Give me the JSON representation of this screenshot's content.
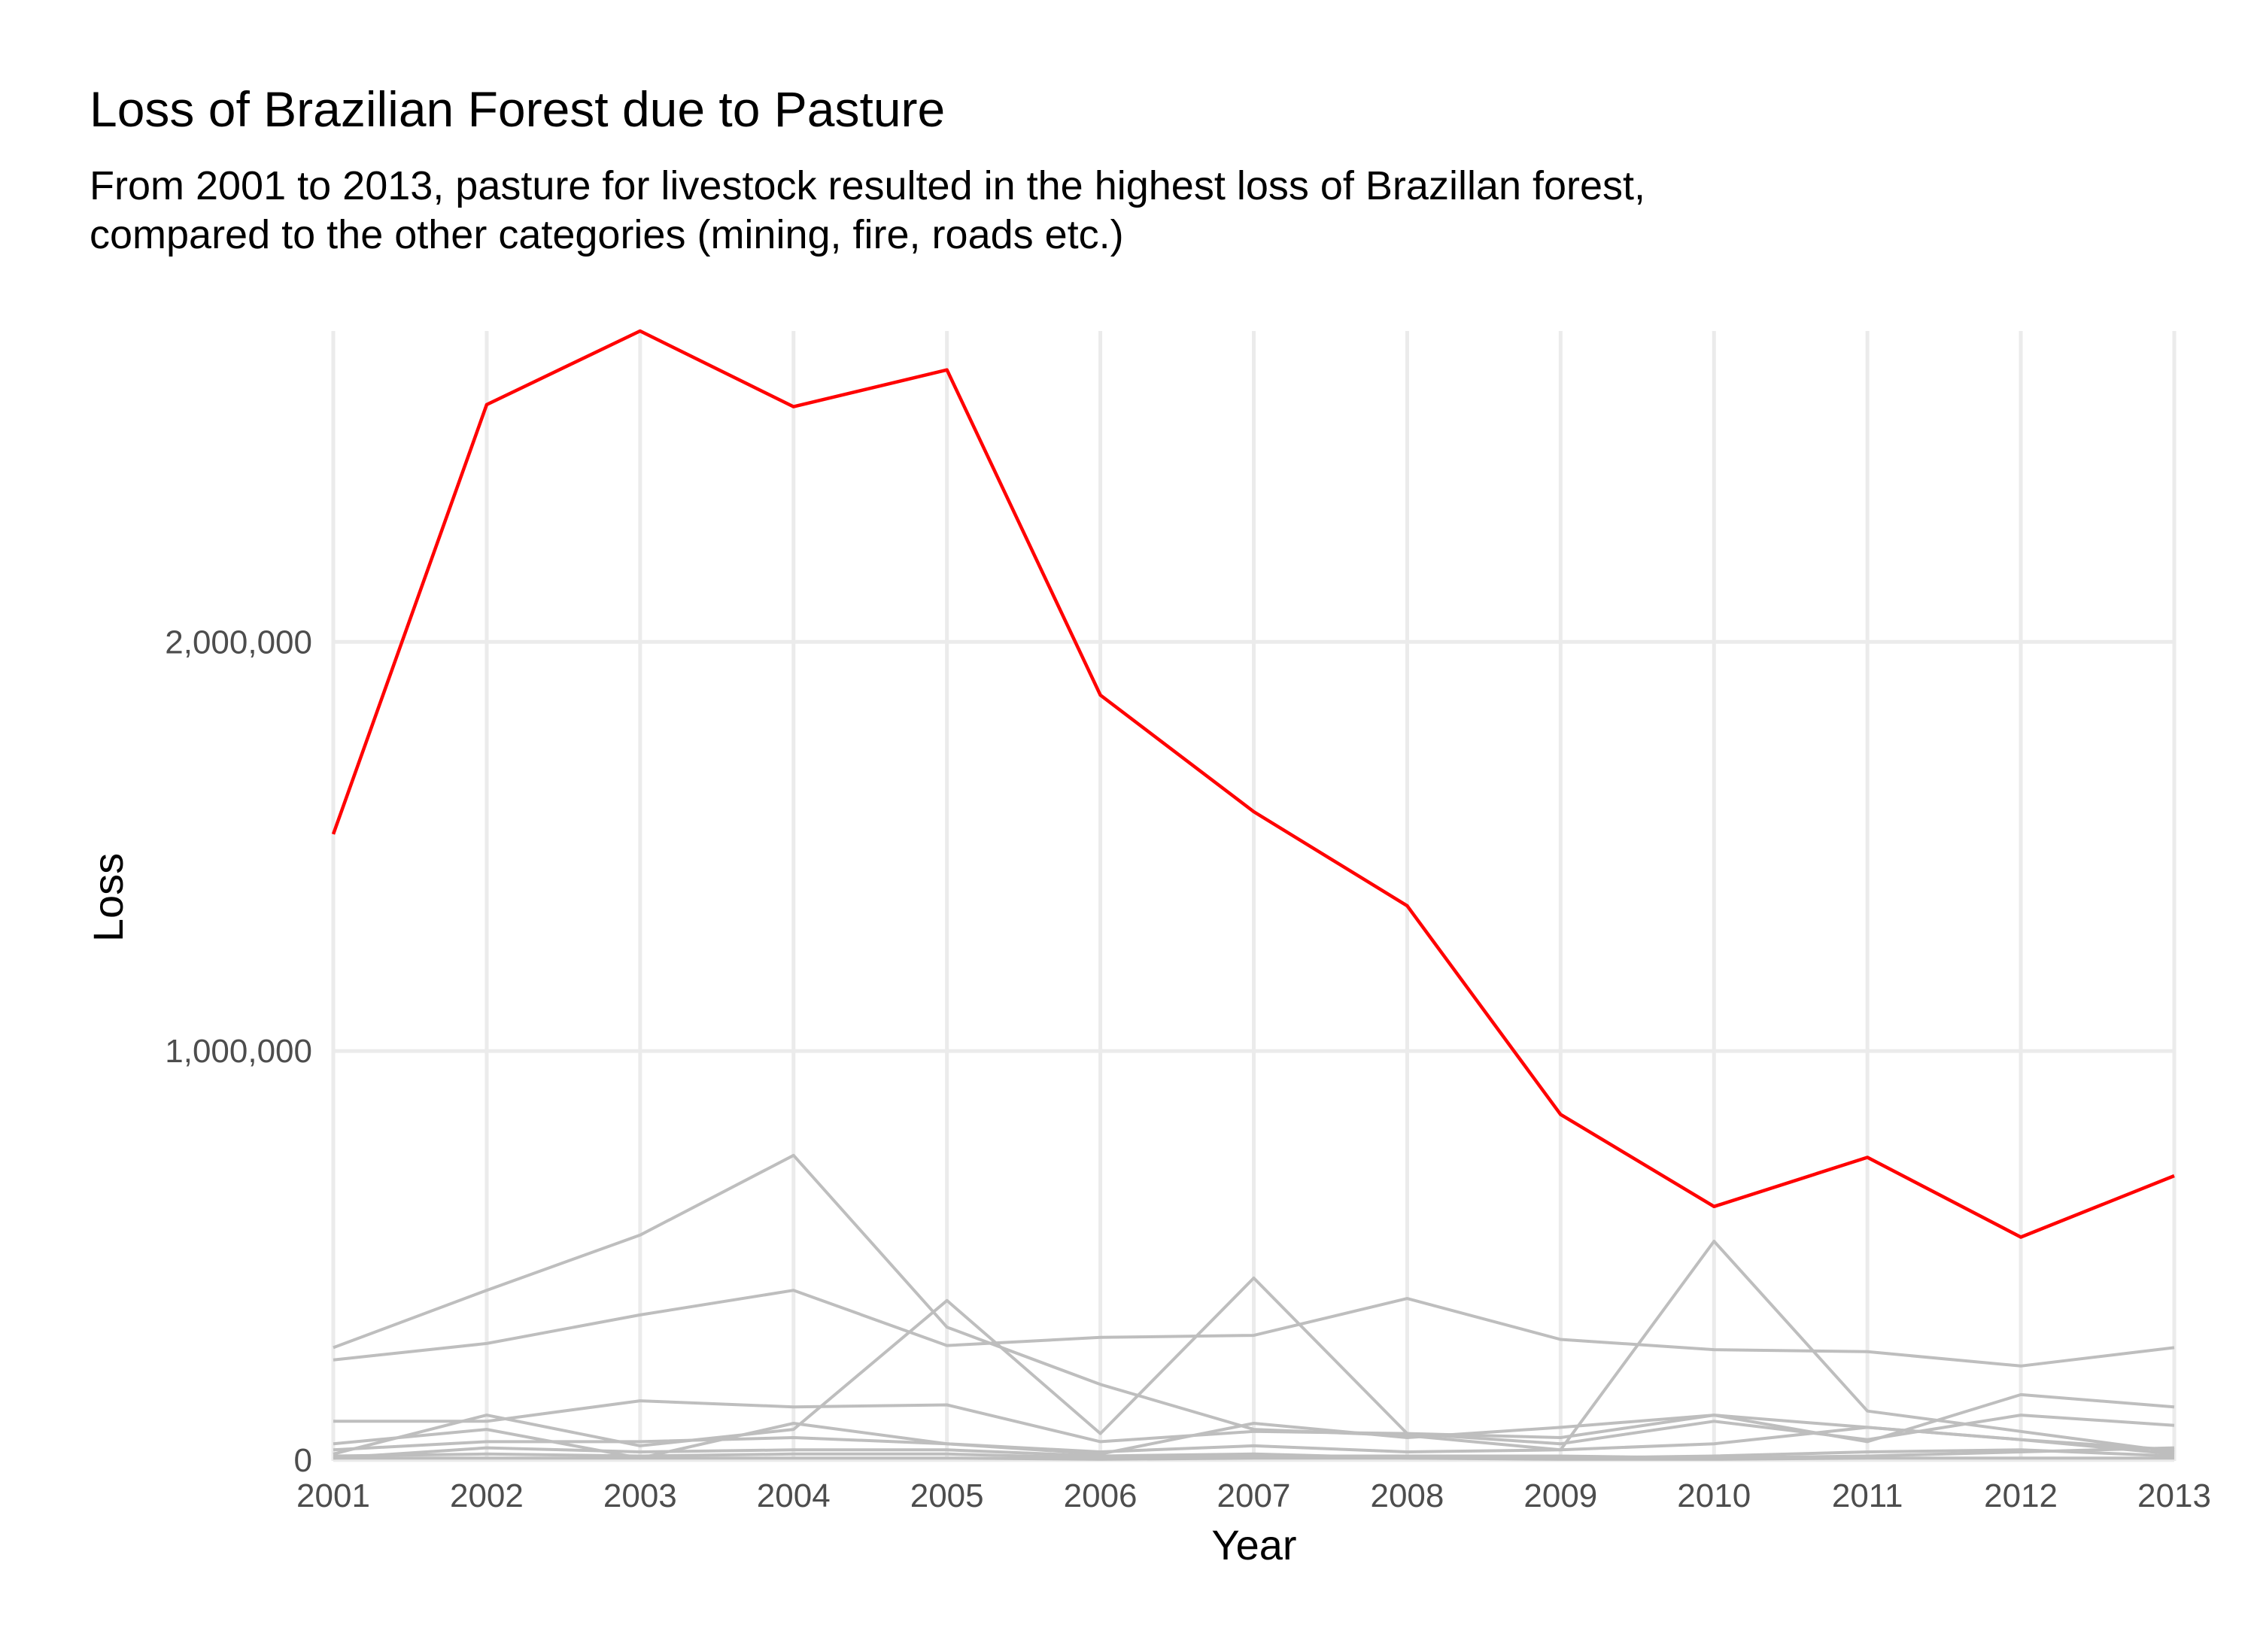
{
  "chart_data": {
    "type": "line",
    "title": "Loss of Brazilian  Forest due to Pasture",
    "subtitle_lines": [
      "From 2001 to 2013, pasture for livestock resulted in the highest loss of Brazillan forest,",
      "compared to the other categories (mining, fire, roads etc.)"
    ],
    "xlabel": "Year",
    "ylabel": "Loss",
    "x": [
      2001,
      2002,
      2003,
      2004,
      2005,
      2006,
      2007,
      2008,
      2009,
      2010,
      2011,
      2012,
      2013
    ],
    "x_tick_labels": [
      "2001",
      "2002",
      "2003",
      "2004",
      "2005",
      "2006",
      "2007",
      "2008",
      "2009",
      "2010",
      "2011",
      "2012",
      "2013"
    ],
    "y_ticks": [
      0,
      1000000,
      2000000
    ],
    "y_tick_labels": [
      "0",
      "1,000,000",
      "2,000,000"
    ],
    "xlim": [
      2001,
      2013
    ],
    "ylim": [
      -2000,
      2760000
    ],
    "grid": true,
    "legend": "none",
    "highlight_color": "#ff0000",
    "other_color": "#bebebe",
    "series": [
      {
        "highlight": true,
        "values": [
          1530000,
          2580000,
          2760000,
          2575000,
          2665000,
          1870000,
          1585000,
          1355000,
          845000,
          620000,
          740000,
          545000,
          695000
        ]
      },
      {
        "highlight": false,
        "values": [
          275000,
          415000,
          550000,
          745000,
          325000,
          185000,
          75000,
          60000,
          25000,
          535000,
          120000,
          70000,
          20000
        ]
      },
      {
        "highlight": false,
        "values": [
          245000,
          285000,
          355000,
          415000,
          280000,
          300000,
          305000,
          395000,
          295000,
          270000,
          265000,
          230000,
          275000
        ]
      },
      {
        "highlight": false,
        "values": [
          95000,
          95000,
          145000,
          130000,
          135000,
          45000,
          70000,
          65000,
          55000,
          110000,
          45000,
          160000,
          130000
        ]
      },
      {
        "highlight": false,
        "values": [
          15000,
          110000,
          35000,
          75000,
          390000,
          65000,
          445000,
          65000,
          40000,
          95000,
          50000,
          110000,
          85000
        ]
      },
      {
        "highlight": false,
        "values": [
          40000,
          75000,
          5000,
          90000,
          40000,
          15000,
          90000,
          55000,
          80000,
          110000,
          80000,
          50000,
          15000
        ]
      },
      {
        "highlight": false,
        "values": [
          25000,
          45000,
          45000,
          55000,
          40000,
          20000,
          35000,
          20000,
          25000,
          40000,
          80000,
          50000,
          25000
        ]
      },
      {
        "highlight": false,
        "values": [
          5000,
          30000,
          20000,
          25000,
          25000,
          10000,
          15000,
          5000,
          5000,
          10000,
          20000,
          25000,
          10000
        ]
      },
      {
        "highlight": false,
        "values": [
          10000,
          15000,
          10000,
          15000,
          15000,
          5000,
          10000,
          10000,
          10000,
          5000,
          10000,
          20000,
          30000
        ]
      },
      {
        "highlight": false,
        "values": [
          5000,
          5000,
          5000,
          5000,
          5000,
          2000,
          5000,
          5000,
          2000,
          2000,
          5000,
          5000,
          5000
        ]
      }
    ]
  }
}
